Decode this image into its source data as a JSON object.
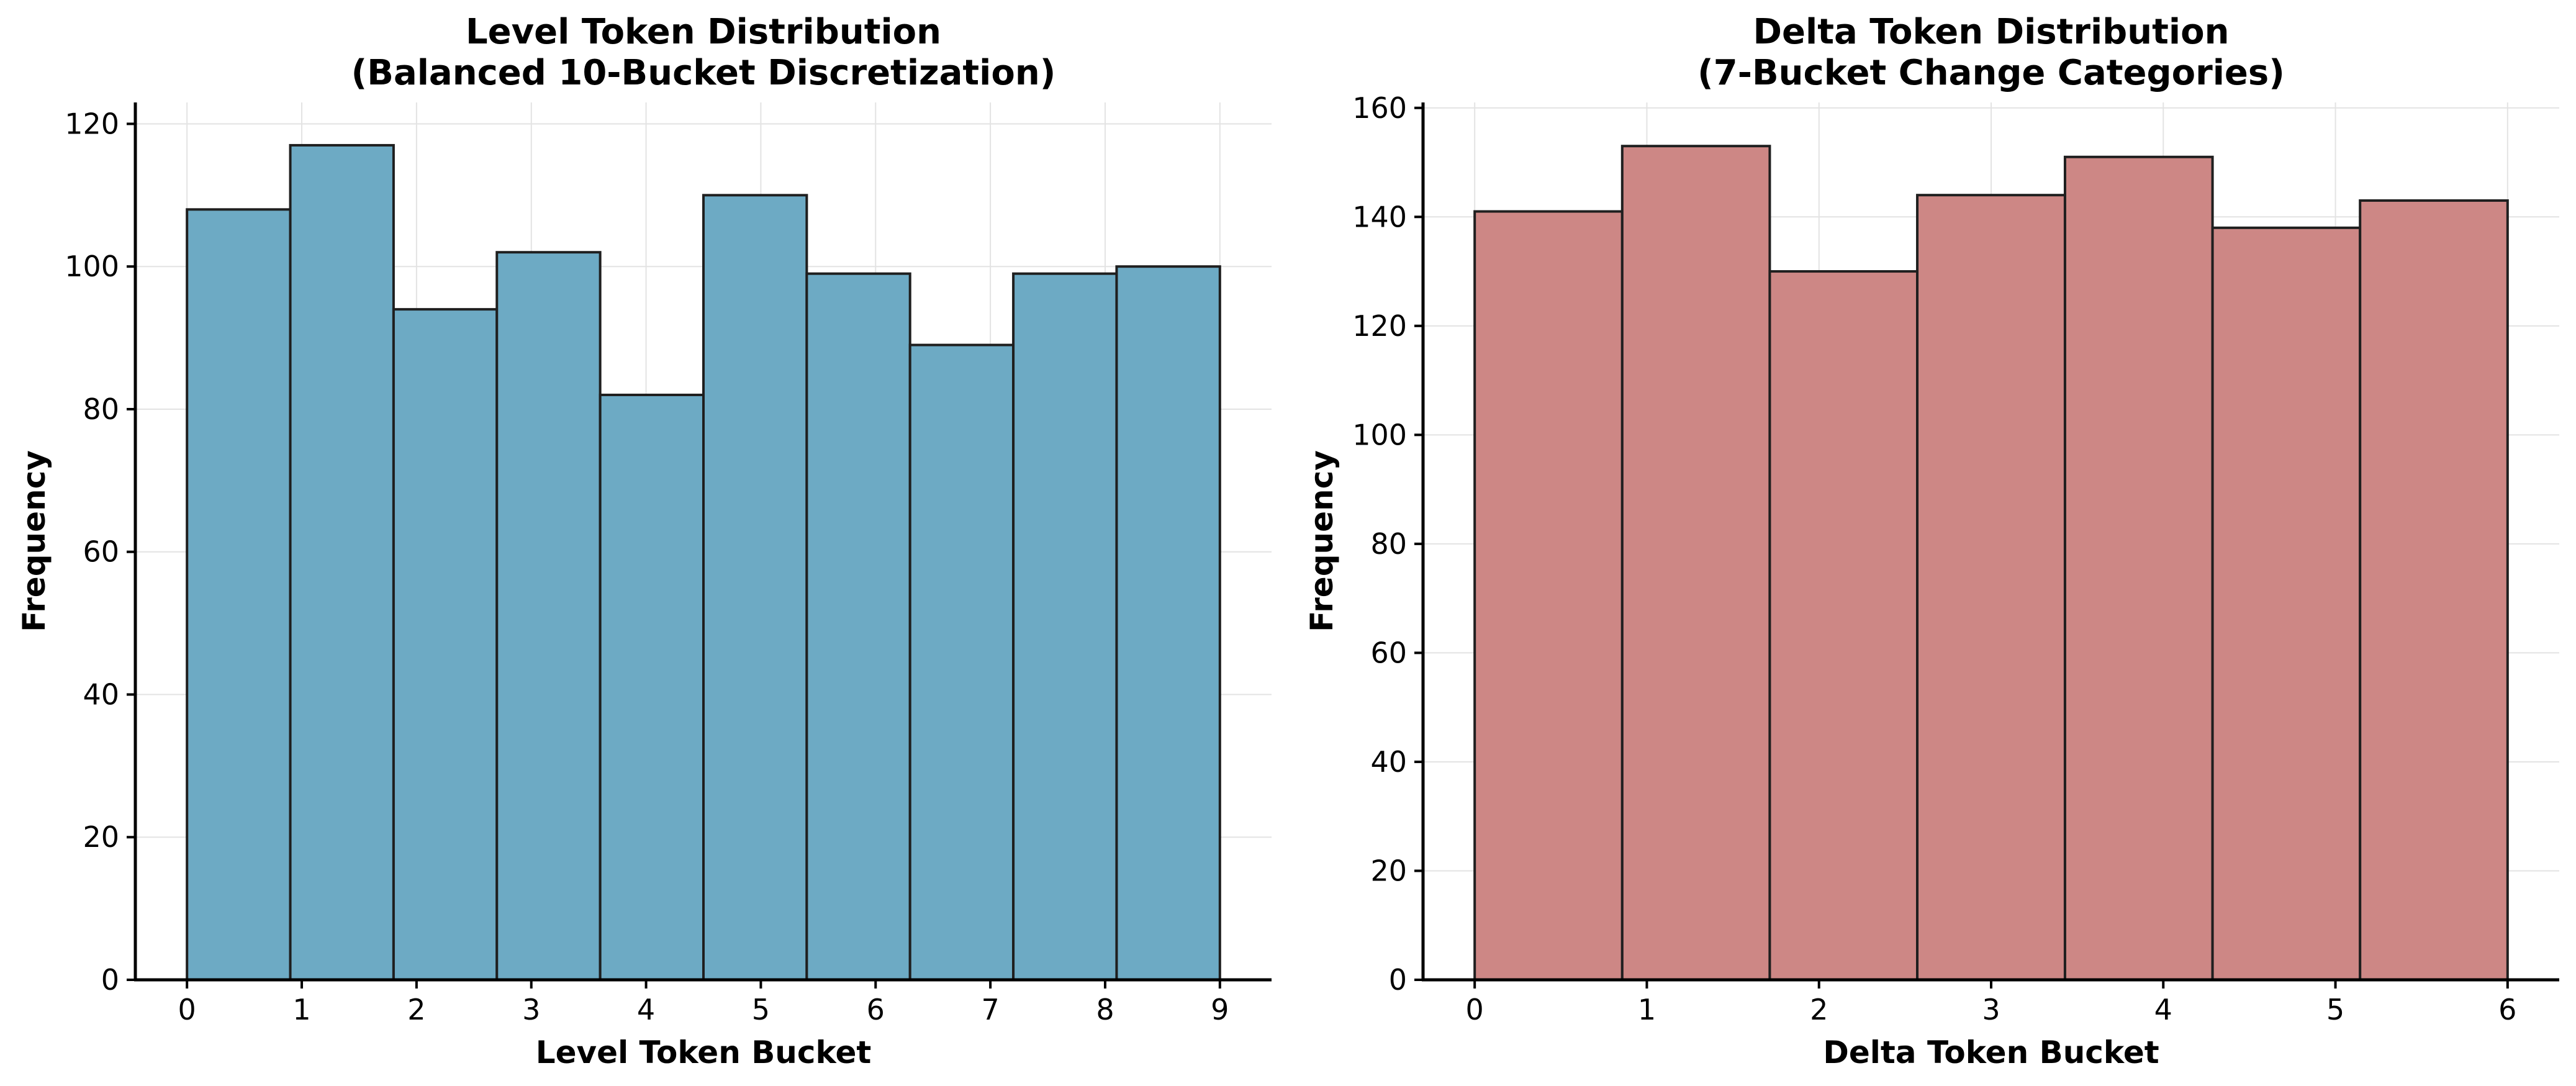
{
  "chart_data": [
    {
      "type": "bar",
      "title": "Level Token Distribution\n(Balanced 10-Bucket Discretization)",
      "xlabel": "Level Token Bucket",
      "ylabel": "Frequency",
      "x": [
        0,
        1,
        2,
        3,
        4,
        5,
        6,
        7,
        8,
        9
      ],
      "bin_edges": [
        0,
        0.9,
        1.8,
        2.7,
        3.6,
        4.5,
        5.4,
        6.3,
        7.2,
        8.1,
        9.0
      ],
      "values": [
        108,
        117,
        94,
        102,
        82,
        110,
        99,
        89,
        99,
        100
      ],
      "xticks": [
        0,
        1,
        2,
        3,
        4,
        5,
        6,
        7,
        8,
        9
      ],
      "yticks": [
        0,
        20,
        40,
        60,
        80,
        100,
        120
      ],
      "xlim": [
        -0.45,
        9.45
      ],
      "ylim": [
        0,
        123
      ],
      "grid": true,
      "color": "#6aa8c3",
      "edge_color": "#1f1f1f"
    },
    {
      "type": "bar",
      "title": "Delta Token Distribution\n(7-Bucket Change Categories)",
      "xlabel": "Delta Token Bucket",
      "ylabel": "Frequency",
      "x": [
        0,
        1,
        2,
        3,
        4,
        5,
        6
      ],
      "bin_edges": [
        0,
        0.857,
        1.714,
        2.571,
        3.429,
        4.286,
        5.143,
        6.0
      ],
      "values": [
        141,
        153,
        130,
        144,
        151,
        138,
        143
      ],
      "xticks": [
        0,
        1,
        2,
        3,
        4,
        5,
        6
      ],
      "yticks": [
        0,
        20,
        40,
        60,
        80,
        100,
        120,
        140,
        160
      ],
      "xlim": [
        -0.3,
        6.3
      ],
      "ylim": [
        0,
        161
      ],
      "grid": true,
      "color": "#cc8583",
      "edge_color": "#1f1f1f"
    }
  ]
}
